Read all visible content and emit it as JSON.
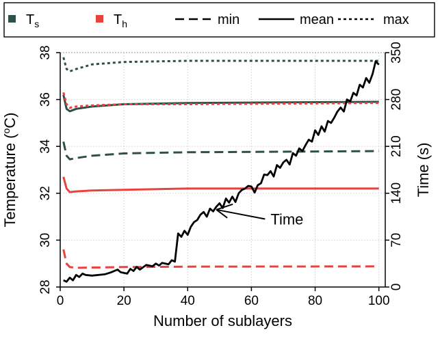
{
  "chart_data": {
    "type": "line",
    "xlabel": "Number of sublayers",
    "ylabel_left": {
      "base": "Temperature (",
      "sup": "o",
      "rest": "C)"
    },
    "ylabel_right": "Time (s)",
    "xlim": [
      0,
      102
    ],
    "ylim_left": [
      28,
      38
    ],
    "ylim_right": [
      0,
      350
    ],
    "xticks": [
      0,
      20,
      40,
      60,
      80,
      100
    ],
    "yticks_left": [
      28,
      30,
      32,
      34,
      36,
      38
    ],
    "yticks_right": [
      0,
      70,
      140,
      210,
      280,
      350
    ],
    "grid": true,
    "legend_position": "top",
    "legend": [
      {
        "kind": "swatch",
        "color": "#2f4f4a",
        "label": "T",
        "sub": "s"
      },
      {
        "kind": "swatch",
        "color": "#e8423f",
        "label": "T",
        "sub": "h"
      },
      {
        "kind": "line",
        "style": "dashed",
        "label": "min"
      },
      {
        "kind": "line",
        "style": "solid",
        "label": "mean"
      },
      {
        "kind": "line",
        "style": "dotted",
        "label": "max"
      }
    ],
    "colors": {
      "Ts": "#2f4f4a",
      "Th": "#e8423f",
      "time": "#000000"
    },
    "temperature_series": [
      {
        "key": "Ts_max",
        "color": "#2f4f4a",
        "style": "dotted",
        "points": [
          [
            1,
            37.8
          ],
          [
            2,
            37.3
          ],
          [
            3,
            37.2
          ],
          [
            5,
            37.3
          ],
          [
            10,
            37.5
          ],
          [
            20,
            37.6
          ],
          [
            40,
            37.65
          ],
          [
            100,
            37.65
          ]
        ]
      },
      {
        "key": "Ts_mean",
        "color": "#2f4f4a",
        "style": "solid",
        "points": [
          [
            1,
            36.2
          ],
          [
            2,
            35.6
          ],
          [
            3,
            35.5
          ],
          [
            5,
            35.6
          ],
          [
            10,
            35.7
          ],
          [
            20,
            35.8
          ],
          [
            40,
            35.85
          ],
          [
            100,
            35.9
          ]
        ]
      },
      {
        "key": "Th_max",
        "color": "#e8423f",
        "style": "dotted",
        "points": [
          [
            1,
            36.3
          ],
          [
            2,
            35.8
          ],
          [
            3,
            35.65
          ],
          [
            5,
            35.7
          ],
          [
            10,
            35.75
          ],
          [
            20,
            35.8
          ],
          [
            40,
            35.8
          ],
          [
            100,
            35.85
          ]
        ]
      },
      {
        "key": "Ts_min",
        "color": "#2f4f4a",
        "style": "dashed",
        "points": [
          [
            1,
            34.2
          ],
          [
            2,
            33.6
          ],
          [
            3,
            33.45
          ],
          [
            5,
            33.5
          ],
          [
            10,
            33.6
          ],
          [
            20,
            33.7
          ],
          [
            40,
            33.75
          ],
          [
            100,
            33.8
          ]
        ]
      },
      {
        "key": "Th_mean",
        "color": "#e8423f",
        "style": "solid",
        "points": [
          [
            1,
            32.7
          ],
          [
            2,
            32.2
          ],
          [
            3,
            32.05
          ],
          [
            5,
            32.08
          ],
          [
            10,
            32.12
          ],
          [
            20,
            32.15
          ],
          [
            40,
            32.2
          ],
          [
            100,
            32.2
          ]
        ]
      },
      {
        "key": "Th_min",
        "color": "#e8423f",
        "style": "dashed",
        "points": [
          [
            1,
            29.6
          ],
          [
            2,
            29.0
          ],
          [
            3,
            28.85
          ],
          [
            5,
            28.82
          ],
          [
            10,
            28.83
          ],
          [
            20,
            28.85
          ],
          [
            40,
            28.87
          ],
          [
            100,
            28.88
          ]
        ]
      }
    ],
    "time_series": {
      "key": "time",
      "color": "#000000",
      "style": "solid",
      "axis": "right",
      "points": [
        [
          1,
          10
        ],
        [
          2,
          8
        ],
        [
          3,
          14
        ],
        [
          4,
          10
        ],
        [
          5,
          18
        ],
        [
          6,
          15
        ],
        [
          7,
          20
        ],
        [
          8,
          18
        ],
        [
          10,
          17
        ],
        [
          14,
          19
        ],
        [
          16,
          22
        ],
        [
          18,
          26
        ],
        [
          19,
          22
        ],
        [
          21,
          20
        ],
        [
          22,
          27
        ],
        [
          23,
          24
        ],
        [
          24,
          30
        ],
        [
          25,
          26
        ],
        [
          27,
          33
        ],
        [
          29,
          31
        ],
        [
          30,
          35
        ],
        [
          31,
          32
        ],
        [
          32,
          36
        ],
        [
          34,
          34
        ],
        [
          35,
          40
        ],
        [
          36,
          38
        ],
        [
          37,
          80
        ],
        [
          38,
          75
        ],
        [
          39,
          84
        ],
        [
          40,
          78
        ],
        [
          41,
          90
        ],
        [
          42,
          97
        ],
        [
          43,
          100
        ],
        [
          44,
          108
        ],
        [
          45,
          112
        ],
        [
          46,
          105
        ],
        [
          47,
          117
        ],
        [
          48,
          113
        ],
        [
          49,
          120
        ],
        [
          50,
          125
        ],
        [
          51,
          118
        ],
        [
          52,
          132
        ],
        [
          53,
          126
        ],
        [
          54,
          135
        ],
        [
          55,
          127
        ],
        [
          56,
          140
        ],
        [
          57,
          145
        ],
        [
          58,
          147
        ],
        [
          59,
          151
        ],
        [
          60,
          150
        ],
        [
          61,
          141
        ],
        [
          62,
          152
        ],
        [
          63,
          155
        ],
        [
          64,
          168
        ],
        [
          65,
          167
        ],
        [
          66,
          173
        ],
        [
          67,
          165
        ],
        [
          68,
          182
        ],
        [
          69,
          178
        ],
        [
          70,
          186
        ],
        [
          71,
          190
        ],
        [
          72,
          183
        ],
        [
          73,
          200
        ],
        [
          74,
          196
        ],
        [
          75,
          207
        ],
        [
          76,
          203
        ],
        [
          77,
          212
        ],
        [
          78,
          220
        ],
        [
          79,
          217
        ],
        [
          80,
          234
        ],
        [
          81,
          227
        ],
        [
          82,
          240
        ],
        [
          83,
          232
        ],
        [
          84,
          248
        ],
        [
          85,
          245
        ],
        [
          86,
          253
        ],
        [
          87,
          262
        ],
        [
          88,
          268
        ],
        [
          89,
          262
        ],
        [
          90,
          280
        ],
        [
          91,
          277
        ],
        [
          92,
          290
        ],
        [
          93,
          286
        ],
        [
          94,
          302
        ],
        [
          95,
          298
        ],
        [
          96,
          312
        ],
        [
          97,
          305
        ],
        [
          98,
          318
        ],
        [
          99,
          337
        ],
        [
          100,
          332
        ]
      ]
    },
    "annotations": [
      {
        "text": "Time",
        "x": 66,
        "y": 30.9,
        "arrow_to": [
          49,
          31.3
        ]
      }
    ]
  }
}
